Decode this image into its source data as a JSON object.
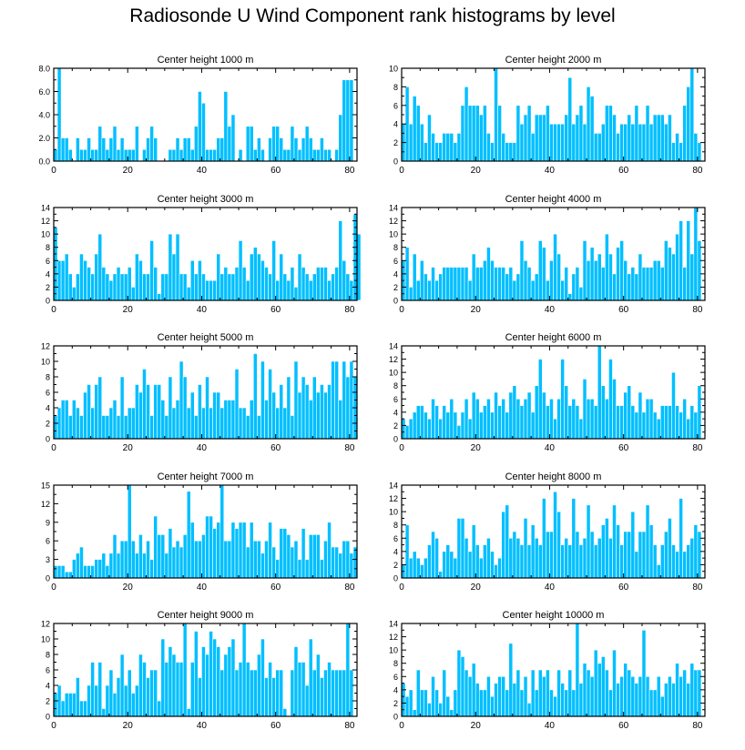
{
  "title": "Radiosonde U Wind Component rank histograms by level",
  "colors": {
    "bar": "#00bfff",
    "bar_edge": "#ffffff",
    "axis": "#000000"
  },
  "chart_data": [
    {
      "type": "bar",
      "title": "Center height 1000 m",
      "xlim": [
        0,
        82
      ],
      "ylim": [
        0,
        8
      ],
      "xticks": [
        0,
        20,
        40,
        60,
        80
      ],
      "xtick_labels": [
        "0",
        "20",
        "40",
        "60",
        "80"
      ],
      "yticks": [
        0,
        2,
        4,
        6,
        8
      ],
      "ytick_labels": [
        "0.0",
        "2.0",
        "4.0",
        "6.0",
        "8.0"
      ],
      "values": [
        1,
        8,
        2,
        2,
        1,
        0,
        2,
        1,
        1,
        2,
        1,
        1,
        3,
        2,
        1,
        2,
        3,
        1,
        2,
        1,
        1,
        1,
        3,
        0,
        1,
        2,
        3,
        2,
        0,
        0,
        0,
        1,
        1,
        2,
        1,
        2,
        2,
        1,
        3,
        6,
        5,
        1,
        1,
        1,
        2,
        2,
        6,
        3,
        4,
        0,
        1,
        0,
        3,
        3,
        1,
        2,
        1,
        0,
        2,
        3,
        3,
        2,
        1,
        1,
        3,
        2,
        1,
        2,
        3,
        2,
        1,
        1,
        2,
        1,
        1,
        0,
        1,
        4,
        7,
        7,
        7
      ]
    },
    {
      "type": "bar",
      "title": "Center height 2000 m",
      "xlim": [
        0,
        82
      ],
      "ylim": [
        0,
        10
      ],
      "xticks": [
        0,
        20,
        40,
        60,
        80
      ],
      "xtick_labels": [
        "0",
        "20",
        "40",
        "60",
        "80"
      ],
      "yticks": [
        0,
        2,
        4,
        6,
        8,
        10
      ],
      "ytick_labels": [
        "0",
        "2",
        "4",
        "6",
        "8",
        "10"
      ],
      "values": [
        4,
        8,
        4,
        7,
        6,
        4,
        2,
        5,
        3,
        2,
        2,
        3,
        3,
        3,
        2,
        3,
        6,
        8,
        6,
        6,
        6,
        5,
        6,
        3,
        2,
        10,
        6,
        3,
        2,
        2,
        2,
        6,
        4,
        5,
        6,
        3,
        5,
        5,
        5,
        6,
        4,
        4,
        4,
        4,
        5,
        9,
        4,
        5,
        6,
        4,
        8,
        7,
        3,
        3,
        4,
        6,
        6,
        5,
        3,
        4,
        4,
        5,
        4,
        6,
        4,
        4,
        6,
        4,
        5,
        5,
        5,
        4,
        5,
        2,
        3,
        2,
        6,
        8,
        10,
        3,
        2
      ]
    },
    {
      "type": "bar",
      "title": "Center height 3000 m",
      "xlim": [
        0,
        82
      ],
      "ylim": [
        0,
        14
      ],
      "xticks": [
        0,
        20,
        40,
        60,
        80
      ],
      "xtick_labels": [
        "0",
        "20",
        "40",
        "60",
        "80"
      ],
      "yticks": [
        0,
        2,
        4,
        6,
        8,
        10,
        12,
        14
      ],
      "ytick_labels": [
        "0",
        "2",
        "4",
        "6",
        "8",
        "10",
        "12",
        "14"
      ],
      "values": [
        11,
        6,
        6,
        7,
        4,
        2,
        4,
        7,
        6,
        5,
        4,
        7,
        10,
        5,
        4,
        3,
        4,
        5,
        4,
        4,
        5,
        2,
        7,
        6,
        4,
        4,
        9,
        5,
        1,
        4,
        4,
        10,
        7,
        10,
        4,
        4,
        2,
        6,
        4,
        6,
        4,
        3,
        3,
        3,
        7,
        4,
        5,
        4,
        4,
        5,
        9,
        5,
        3,
        7,
        8,
        7,
        6,
        5,
        4,
        9,
        3,
        7,
        4,
        3,
        5,
        2,
        7,
        5,
        4,
        3,
        4,
        5,
        5,
        5,
        3,
        4,
        5,
        12,
        6,
        4,
        3,
        13,
        10
      ]
    },
    {
      "type": "bar",
      "title": "Center height 4000 m",
      "xlim": [
        0,
        82
      ],
      "ylim": [
        0,
        14
      ],
      "xticks": [
        0,
        20,
        40,
        60,
        80
      ],
      "xtick_labels": [
        "0",
        "20",
        "40",
        "60",
        "80"
      ],
      "yticks": [
        0,
        2,
        4,
        6,
        8,
        10,
        12,
        14
      ],
      "ytick_labels": [
        "0",
        "2",
        "4",
        "6",
        "8",
        "10",
        "12",
        "14"
      ],
      "values": [
        6,
        8,
        2,
        7,
        3,
        6,
        4,
        3,
        5,
        3,
        4,
        5,
        5,
        5,
        5,
        5,
        5,
        5,
        3,
        7,
        5,
        5,
        6,
        8,
        6,
        5,
        5,
        5,
        4,
        5,
        3,
        4,
        9,
        6,
        5,
        3,
        4,
        9,
        8,
        3,
        6,
        10,
        7,
        3,
        5,
        1,
        4,
        5,
        2,
        9,
        6,
        8,
        6,
        7,
        5,
        10,
        7,
        4,
        8,
        9,
        6,
        4,
        5,
        4,
        7,
        5,
        5,
        5,
        6,
        6,
        5,
        9,
        8,
        7,
        10,
        12,
        5,
        12,
        7,
        14,
        9
      ]
    },
    {
      "type": "bar",
      "title": "Center height 5000 m",
      "xlim": [
        0,
        82
      ],
      "ylim": [
        0,
        12
      ],
      "xticks": [
        0,
        20,
        40,
        60,
        80
      ],
      "xtick_labels": [
        "0",
        "20",
        "40",
        "60",
        "80"
      ],
      "yticks": [
        0,
        2,
        4,
        6,
        8,
        10,
        12
      ],
      "ytick_labels": [
        "0",
        "2",
        "4",
        "6",
        "8",
        "10",
        "12"
      ],
      "values": [
        3,
        4,
        5,
        5,
        3,
        5,
        4,
        3,
        6,
        7,
        4,
        7,
        8,
        3,
        3,
        4,
        5,
        3,
        8,
        3,
        4,
        4,
        7,
        6,
        9,
        7,
        3,
        7,
        7,
        5,
        3,
        8,
        4,
        5,
        10,
        8,
        4,
        6,
        3,
        7,
        4,
        8,
        4,
        6,
        6,
        4,
        5,
        5,
        5,
        9,
        4,
        4,
        3,
        5,
        11,
        3,
        10,
        5,
        9,
        6,
        4,
        7,
        4,
        8,
        3,
        10,
        6,
        8,
        7,
        5,
        8,
        6,
        7,
        6,
        7,
        10,
        10,
        5,
        10,
        8,
        10,
        8
      ]
    },
    {
      "type": "bar",
      "title": "Center height 6000 m",
      "xlim": [
        0,
        82
      ],
      "ylim": [
        0,
        14
      ],
      "xticks": [
        0,
        20,
        40,
        60,
        80
      ],
      "xtick_labels": [
        "0",
        "20",
        "40",
        "60",
        "80"
      ],
      "yticks": [
        0,
        2,
        4,
        6,
        8,
        10,
        12,
        14
      ],
      "ytick_labels": [
        "0",
        "2",
        "4",
        "6",
        "8",
        "10",
        "12",
        "14"
      ],
      "values": [
        3,
        2,
        3,
        4,
        5,
        5,
        4,
        3,
        6,
        5,
        3,
        5,
        4,
        6,
        4,
        2,
        4,
        6,
        3,
        7,
        6,
        4,
        5,
        6,
        4,
        7,
        5,
        6,
        4,
        7,
        8,
        6,
        5,
        6,
        7,
        4,
        8,
        12,
        7,
        5,
        6,
        3,
        6,
        12,
        8,
        5,
        6,
        5,
        3,
        9,
        6,
        6,
        5,
        14,
        8,
        6,
        12,
        9,
        5,
        5,
        7,
        8,
        5,
        4,
        7,
        4,
        6,
        6,
        4,
        3,
        5,
        5,
        5,
        10,
        5,
        4,
        6,
        3,
        5,
        4,
        8
      ]
    },
    {
      "type": "bar",
      "title": "Center height 7000 m",
      "xlim": [
        0,
        82
      ],
      "ylim": [
        0,
        15
      ],
      "xticks": [
        0,
        20,
        40,
        60,
        80
      ],
      "xtick_labels": [
        "0",
        "20",
        "40",
        "60",
        "80"
      ],
      "yticks": [
        0,
        3,
        6,
        9,
        12,
        15
      ],
      "ytick_labels": [
        "0",
        "3",
        "6",
        "9",
        "12",
        "15"
      ],
      "values": [
        2,
        2,
        2,
        1,
        1,
        3,
        4,
        5,
        2,
        2,
        2,
        3,
        3,
        4,
        2,
        4,
        7,
        4,
        6,
        6,
        15,
        6,
        4,
        7,
        4,
        6,
        3,
        10,
        7,
        7,
        4,
        8,
        5,
        6,
        5,
        7,
        14,
        9,
        6,
        6,
        7,
        10,
        10,
        8,
        9,
        15,
        6,
        6,
        9,
        8,
        9,
        9,
        5,
        9,
        6,
        6,
        4,
        6,
        9,
        5,
        3,
        8,
        8,
        7,
        5,
        6,
        3,
        8,
        3,
        7,
        7,
        7,
        3,
        6,
        9,
        5,
        5,
        4,
        6,
        6,
        4,
        5
      ]
    },
    {
      "type": "bar",
      "title": "Center height 8000 m",
      "xlim": [
        0,
        82
      ],
      "ylim": [
        0,
        14
      ],
      "xticks": [
        0,
        20,
        40,
        60,
        80
      ],
      "xtick_labels": [
        "0",
        "20",
        "40",
        "60",
        "80"
      ],
      "yticks": [
        0,
        2,
        4,
        6,
        8,
        10,
        12,
        14
      ],
      "ytick_labels": [
        "0",
        "2",
        "4",
        "6",
        "8",
        "10",
        "12",
        "14"
      ],
      "values": [
        2,
        8,
        3,
        4,
        3,
        2,
        3,
        5,
        7,
        6,
        1,
        4,
        5,
        4,
        3,
        9,
        9,
        6,
        4,
        8,
        5,
        3,
        5,
        6,
        4,
        2,
        3,
        10,
        11,
        6,
        7,
        6,
        5,
        9,
        5,
        8,
        6,
        5,
        12,
        7,
        7,
        13,
        10,
        5,
        6,
        5,
        12,
        7,
        5,
        6,
        11,
        7,
        5,
        6,
        8,
        9,
        6,
        11,
        8,
        5,
        7,
        7,
        10,
        4,
        7,
        7,
        11,
        8,
        5,
        2,
        5,
        7,
        9,
        5,
        4,
        12,
        4,
        5,
        6,
        8,
        7
      ]
    },
    {
      "type": "bar",
      "title": "Center height 9000 m",
      "xlim": [
        0,
        82
      ],
      "ylim": [
        0,
        12
      ],
      "xticks": [
        0,
        20,
        40,
        60,
        80
      ],
      "xtick_labels": [
        "0",
        "20",
        "40",
        "60",
        "80"
      ],
      "yticks": [
        0,
        2,
        4,
        6,
        8,
        10,
        12
      ],
      "ytick_labels": [
        "0",
        "2",
        "4",
        "6",
        "8",
        "10",
        "12"
      ],
      "values": [
        3,
        4,
        2,
        3,
        3,
        3,
        5,
        2,
        2,
        4,
        7,
        4,
        7,
        1,
        4,
        6,
        3,
        5,
        8,
        4,
        6,
        3,
        4,
        8,
        7,
        5,
        6,
        6,
        2,
        10,
        7,
        9,
        8,
        7,
        7,
        12,
        1,
        7,
        11,
        5,
        9,
        8,
        11,
        10,
        9,
        6,
        8,
        9,
        10,
        6,
        7,
        12,
        7,
        6,
        6,
        8,
        10,
        5,
        7,
        5,
        6,
        6,
        1,
        0,
        6,
        9,
        7,
        7,
        4,
        10,
        6,
        8,
        5,
        6,
        7,
        6,
        6,
        6,
        6,
        12,
        6
      ]
    },
    {
      "type": "bar",
      "title": "Center height 10000 m",
      "xlim": [
        0,
        82
      ],
      "ylim": [
        0,
        14
      ],
      "xticks": [
        0,
        20,
        40,
        60,
        80
      ],
      "xtick_labels": [
        "0",
        "20",
        "40",
        "60",
        "80"
      ],
      "yticks": [
        0,
        2,
        4,
        6,
        8,
        10,
        12,
        14
      ],
      "ytick_labels": [
        "0",
        "2",
        "4",
        "6",
        "8",
        "10",
        "12",
        "14"
      ],
      "values": [
        5,
        3,
        4,
        1,
        7,
        4,
        4,
        2,
        6,
        4,
        2,
        7,
        3,
        1,
        4,
        10,
        9,
        7,
        6,
        8,
        5,
        4,
        4,
        6,
        3,
        5,
        6,
        6,
        4,
        11,
        5,
        7,
        4,
        6,
        2,
        7,
        4,
        7,
        6,
        7,
        4,
        3,
        7,
        5,
        4,
        7,
        4,
        14,
        5,
        8,
        7,
        6,
        10,
        8,
        9,
        7,
        4,
        10,
        5,
        6,
        8,
        7,
        6,
        5,
        6,
        13,
        6,
        4,
        4,
        6,
        3,
        5,
        6,
        5,
        8,
        6,
        7,
        5,
        8,
        7,
        7
      ]
    }
  ]
}
